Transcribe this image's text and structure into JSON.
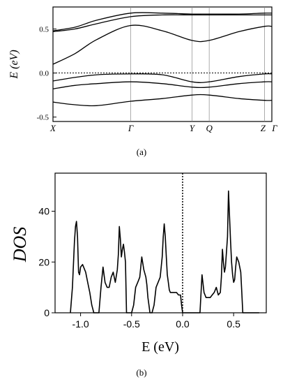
{
  "chart_data": [
    {
      "panel": "a",
      "type": "line",
      "caption": "(a)",
      "ylabel": "E (eV)",
      "ylim": [
        -0.55,
        0.75
      ],
      "yticks": [
        {
          "value": 0.5,
          "label": "0.5"
        },
        {
          "value": 0.0,
          "label": "0.0"
        },
        {
          "value": -0.5,
          "label": "-0.5"
        }
      ],
      "kpoints": [
        {
          "label": "X",
          "k": 0.0
        },
        {
          "label": "Γ",
          "k": 0.3552
        },
        {
          "label": "Y",
          "k": 0.6351
        },
        {
          "label": "Q",
          "k": 0.7138
        },
        {
          "label": "Z",
          "k": 0.9662
        },
        {
          "label": "Γ",
          "k": 1.0
        }
      ],
      "fermi_level": 0.0,
      "bands": [
        {
          "k": [
            0.0,
            0.1,
            0.2,
            0.3552,
            0.5,
            0.6351,
            0.7138,
            0.85,
            0.9662,
            1.0
          ],
          "E": [
            0.48,
            0.52,
            0.6,
            0.68,
            0.68,
            0.67,
            0.67,
            0.67,
            0.68,
            0.68
          ]
        },
        {
          "k": [
            0.0,
            0.1,
            0.2,
            0.3552,
            0.5,
            0.6351,
            0.7138,
            0.85,
            0.9662,
            1.0
          ],
          "E": [
            0.47,
            0.5,
            0.56,
            0.64,
            0.66,
            0.66,
            0.66,
            0.66,
            0.66,
            0.66
          ]
        },
        {
          "k": [
            0.0,
            0.1,
            0.2,
            0.3552,
            0.5,
            0.6351,
            0.7138,
            0.85,
            0.9662,
            1.0
          ],
          "E": [
            0.1,
            0.22,
            0.38,
            0.54,
            0.48,
            0.37,
            0.37,
            0.47,
            0.53,
            0.53
          ]
        },
        {
          "k": [
            0.0,
            0.1,
            0.2,
            0.3552,
            0.5,
            0.6351,
            0.7138,
            0.85,
            0.9662,
            1.0
          ],
          "E": [
            -0.09,
            -0.05,
            -0.02,
            -0.01,
            -0.02,
            -0.1,
            -0.1,
            -0.04,
            -0.01,
            -0.01
          ]
        },
        {
          "k": [
            0.0,
            0.1,
            0.2,
            0.3552,
            0.5,
            0.6351,
            0.7138,
            0.85,
            0.9662,
            1.0
          ],
          "E": [
            -0.18,
            -0.14,
            -0.12,
            -0.1,
            -0.12,
            -0.16,
            -0.16,
            -0.12,
            -0.1,
            -0.1
          ]
        },
        {
          "k": [
            0.0,
            0.1,
            0.2,
            0.3552,
            0.5,
            0.6351,
            0.7138,
            0.85,
            0.9662,
            1.0
          ],
          "E": [
            -0.33,
            -0.36,
            -0.37,
            -0.32,
            -0.29,
            -0.25,
            -0.25,
            -0.29,
            -0.31,
            -0.31
          ]
        }
      ]
    },
    {
      "panel": "b",
      "type": "line",
      "caption": "(b)",
      "xlabel": "E (eV)",
      "ylabel": "DOS",
      "xlim": [
        -1.25,
        0.82
      ],
      "ylim": [
        0,
        55
      ],
      "xticks": [
        {
          "value": -1.0,
          "label": "-1.0"
        },
        {
          "value": -0.5,
          "label": "-0.5"
        },
        {
          "value": 0.0,
          "label": "0.0"
        },
        {
          "value": 0.5,
          "label": "0.5"
        }
      ],
      "yticks": [
        {
          "value": 0,
          "label": "0"
        },
        {
          "value": 20,
          "label": "20"
        },
        {
          "value": 40,
          "label": "40"
        }
      ],
      "fermi_level": 0.0,
      "series": [
        {
          "x": [
            -1.1,
            -1.08,
            -1.06,
            -1.05,
            -1.04,
            -1.03,
            -1.02,
            -1.01,
            -1.0,
            -0.98,
            -0.95,
            -0.93,
            -0.91,
            -0.89,
            -0.87,
            -0.85,
            -0.82,
            -0.8,
            -0.78,
            -0.76,
            -0.74,
            -0.72,
            -0.7,
            -0.68,
            -0.66,
            -0.64,
            -0.63,
            -0.62,
            -0.61,
            -0.6,
            -0.59,
            -0.58,
            -0.57,
            -0.56,
            -0.55,
            -0.53,
            -0.5,
            -0.48,
            -0.46,
            -0.44,
            -0.42,
            -0.4,
            -0.38,
            -0.36,
            -0.35,
            -0.34,
            -0.33,
            -0.32,
            -0.3,
            -0.28,
            -0.26,
            -0.24,
            -0.22,
            -0.2,
            -0.19,
            -0.18,
            -0.17,
            -0.16,
            -0.15,
            -0.14,
            -0.13,
            -0.12,
            -0.1,
            -0.08,
            -0.06,
            -0.04,
            -0.02,
            -0.01,
            0.0,
            0.0,
            0.05,
            0.1,
            0.15,
            0.17,
            0.19,
            0.21,
            0.23,
            0.25,
            0.27,
            0.29,
            0.31,
            0.33,
            0.35,
            0.37,
            0.38,
            0.39,
            0.4,
            0.41,
            0.42,
            0.43,
            0.44,
            0.45,
            0.47,
            0.48,
            0.49,
            0.5,
            0.51,
            0.52,
            0.53,
            0.55,
            0.57,
            0.58,
            0.59,
            0.6,
            0.61,
            0.62,
            0.64,
            0.66,
            0.7,
            0.75
          ],
          "y": [
            0,
            10,
            28,
            34,
            36,
            30,
            16,
            15,
            18,
            19,
            16,
            12,
            8,
            3,
            0,
            0,
            0,
            10,
            18,
            12,
            10,
            10,
            14,
            16,
            12,
            17,
            23,
            34,
            29,
            22,
            25,
            27,
            24,
            20,
            0,
            0,
            0,
            3,
            10,
            12,
            14,
            22,
            17,
            14,
            11,
            6,
            3,
            0,
            0,
            3,
            10,
            12,
            14,
            22,
            30,
            35,
            30,
            22,
            15,
            12,
            9,
            8,
            8,
            8,
            8,
            7,
            7,
            3,
            0,
            0,
            0,
            0,
            0,
            0,
            15,
            8,
            6,
            6,
            6,
            7,
            8,
            10,
            7,
            8,
            14,
            25,
            20,
            16,
            18,
            24,
            30,
            48,
            28,
            20,
            15,
            12,
            13,
            18,
            22,
            20,
            16,
            8,
            0,
            0,
            0,
            0,
            0,
            0,
            0,
            0
          ]
        }
      ]
    }
  ]
}
